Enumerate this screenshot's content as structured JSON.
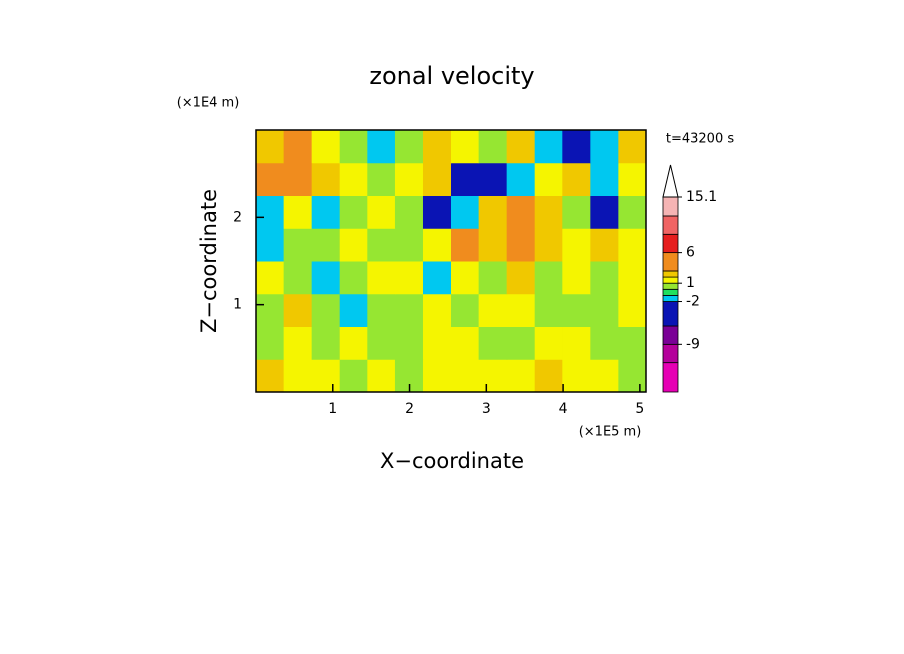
{
  "chart_data": {
    "type": "contour",
    "title": "zonal velocity",
    "y_unit": "(×1E4 m)",
    "x_unit": "(×1E5 m)",
    "annotation": "t=43200 s",
    "xlabel": "X−coordinate",
    "ylabel": "Z−coordinate",
    "xlim": [
      0,
      5.08
    ],
    "ylim": [
      0,
      3
    ],
    "xticks": [
      1,
      2,
      3,
      4,
      5
    ],
    "yticks": [
      1,
      2
    ],
    "x": [
      0.18,
      0.54,
      0.91,
      1.27,
      1.63,
      1.99,
      2.36,
      2.72,
      3.08,
      3.45,
      3.81,
      4.17,
      4.54,
      4.9
    ],
    "y": [
      0.19,
      0.56,
      0.94,
      1.31,
      1.69,
      2.06,
      2.44,
      2.81
    ],
    "z": [
      [
        2.5,
        1.5,
        1.5,
        0.5,
        1.5,
        0.5,
        1.5,
        1.5,
        1.5,
        1.5,
        2.5,
        1.5,
        1.5,
        0.5
      ],
      [
        0.5,
        1.5,
        0.5,
        1.5,
        0.5,
        0.5,
        1.5,
        1.5,
        0.5,
        0.5,
        1.5,
        1.5,
        0.5,
        0.5
      ],
      [
        0.5,
        2.5,
        0.5,
        -1.5,
        0.5,
        0.5,
        1.5,
        0.5,
        1.5,
        1.5,
        0.5,
        0.5,
        0.5,
        1.5
      ],
      [
        1.5,
        0.5,
        -1.5,
        0.5,
        1.5,
        1.5,
        -1.5,
        1.5,
        0.5,
        2.5,
        0.5,
        1.5,
        0.5,
        1.5
      ],
      [
        -1.5,
        0.5,
        0.5,
        1.5,
        0.5,
        0.5,
        1.5,
        4,
        2.5,
        4,
        2.5,
        1.5,
        2.5,
        1.5
      ],
      [
        -1.5,
        1.5,
        -1.5,
        0.5,
        1.5,
        0.5,
        -4,
        -1.5,
        2.5,
        4,
        2.5,
        0.5,
        -2.5,
        0.5
      ],
      [
        4,
        5,
        2.5,
        1.5,
        0.5,
        1.5,
        2.5,
        -4,
        -4.5,
        -1.5,
        1.5,
        2.5,
        -1.5,
        1.5
      ],
      [
        2.5,
        4,
        1.5,
        0.5,
        -1.5,
        0.5,
        2.5,
        1.5,
        0.5,
        2.5,
        -1.5,
        -4,
        -1.5,
        2.5
      ]
    ],
    "colorbar": {
      "clim": [
        -16.8,
        15.1
      ],
      "levels": [
        -16.8,
        -12,
        -9,
        -6,
        -2,
        -1,
        0,
        1,
        2,
        3,
        6,
        9,
        12,
        15.1
      ],
      "colors": [
        "#e600b4",
        "#b4009b",
        "#7a0096",
        "#0a14b4",
        "#00c8f0",
        "#20e060",
        "#96e632",
        "#f5f500",
        "#f0c800",
        "#f08c1e",
        "#e61e1e",
        "#f06464",
        "#f5b4b4"
      ],
      "ticks": [
        15.1,
        6,
        1,
        -2,
        -9
      ]
    }
  }
}
